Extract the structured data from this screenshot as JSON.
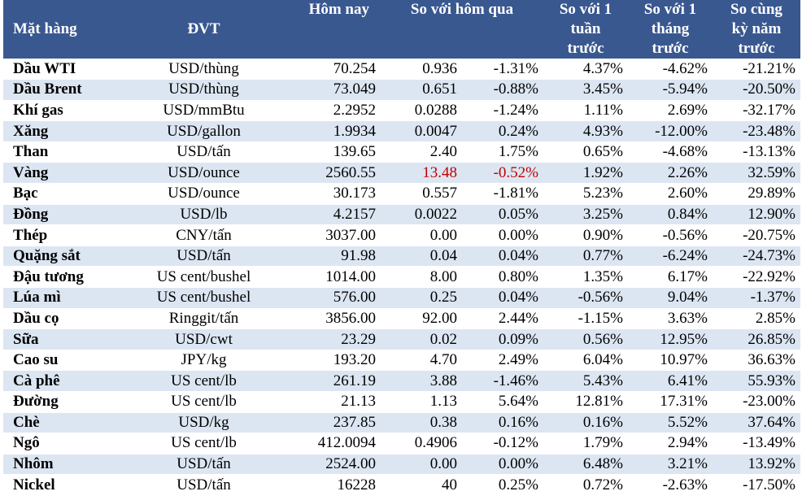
{
  "headers": {
    "name": "Mặt hàng",
    "unit": "ĐVT",
    "today": "Hôm nay",
    "prev": "So với hôm qua",
    "week": [
      "So với 1",
      "tuần",
      "trước"
    ],
    "month": [
      "So với 1",
      "tháng",
      "trước"
    ],
    "year": [
      "So cùng",
      "kỳ năm",
      "trước"
    ]
  },
  "rows": [
    {
      "name": "Dầu WTI",
      "unit": "USD/thùng",
      "today": "70.254",
      "chg": "0.936",
      "pct": "-1.31%",
      "week": "4.37%",
      "month": "-4.62%",
      "year": "-21.21%"
    },
    {
      "name": "Dầu Brent",
      "unit": "USD/thùng",
      "today": "73.049",
      "chg": "0.651",
      "pct": "-0.88%",
      "week": "3.45%",
      "month": "-5.94%",
      "year": "-20.50%"
    },
    {
      "name": "Khí gas",
      "unit": "USD/mmBtu",
      "today": "2.2952",
      "chg": "0.0288",
      "pct": "-1.24%",
      "week": "1.11%",
      "month": "2.69%",
      "year": "-32.17%"
    },
    {
      "name": "Xăng",
      "unit": "USD/gallon",
      "today": "1.9934",
      "chg": "0.0047",
      "pct": "0.24%",
      "week": "4.93%",
      "month": "-12.00%",
      "year": "-23.48%"
    },
    {
      "name": "Than",
      "unit": "USD/tấn",
      "today": "139.65",
      "chg": "2.40",
      "pct": "1.75%",
      "week": "0.65%",
      "month": "-4.68%",
      "year": "-13.13%"
    },
    {
      "name": "Vàng",
      "unit": "USD/ounce",
      "today": "2560.55",
      "chg": "13.48",
      "pct": "-0.52%",
      "week": "1.92%",
      "month": "2.26%",
      "year": "32.59%",
      "red": true
    },
    {
      "name": "Bạc",
      "unit": "USD/ounce",
      "today": "30.173",
      "chg": "0.557",
      "pct": "-1.81%",
      "week": "5.23%",
      "month": "2.60%",
      "year": "29.89%"
    },
    {
      "name": "Đồng",
      "unit": "USD/lb",
      "today": "4.2157",
      "chg": "0.0022",
      "pct": "0.05%",
      "week": "3.25%",
      "month": "0.84%",
      "year": "12.90%"
    },
    {
      "name": "Thép",
      "unit": "CNY/tấn",
      "today": "3037.00",
      "chg": "0.00",
      "pct": "0.00%",
      "week": "0.90%",
      "month": "-0.56%",
      "year": "-20.75%"
    },
    {
      "name": "Quặng sắt",
      "unit": "USD/tấn",
      "today": "91.98",
      "chg": "0.04",
      "pct": "0.04%",
      "week": "0.77%",
      "month": "-6.24%",
      "year": "-24.73%"
    },
    {
      "name": "Đậu tương",
      "unit": "US cent/bushel",
      "today": "1014.00",
      "chg": "8.00",
      "pct": "0.80%",
      "week": "1.35%",
      "month": "6.17%",
      "year": "-22.92%"
    },
    {
      "name": "Lúa mì",
      "unit": "US cent/bushel",
      "today": "576.00",
      "chg": "0.25",
      "pct": "0.04%",
      "week": "-0.56%",
      "month": "9.04%",
      "year": "-1.37%"
    },
    {
      "name": "Dầu cọ",
      "unit": "Ringgit/tấn",
      "today": "3856.00",
      "chg": "92.00",
      "pct": "2.44%",
      "week": "-1.15%",
      "month": "3.63%",
      "year": "2.85%"
    },
    {
      "name": "Sữa",
      "unit": "USD/cwt",
      "today": "23.29",
      "chg": "0.02",
      "pct": "0.09%",
      "week": "0.56%",
      "month": "12.95%",
      "year": "26.85%"
    },
    {
      "name": "Cao su",
      "unit": "JPY/kg",
      "today": "193.20",
      "chg": "4.70",
      "pct": "2.49%",
      "week": "6.04%",
      "month": "10.97%",
      "year": "36.63%"
    },
    {
      "name": "Cà phê",
      "unit": "US cent/lb",
      "today": "261.19",
      "chg": "3.88",
      "pct": "-1.46%",
      "week": "5.43%",
      "month": "6.41%",
      "year": "55.93%"
    },
    {
      "name": "Đường",
      "unit": "US cent/lb",
      "today": "21.13",
      "chg": "1.13",
      "pct": "5.64%",
      "week": "12.81%",
      "month": "17.31%",
      "year": "-23.00%"
    },
    {
      "name": "Chè",
      "unit": "USD/kg",
      "today": "237.85",
      "chg": "0.38",
      "pct": "0.16%",
      "week": "0.16%",
      "month": "5.52%",
      "year": "37.64%"
    },
    {
      "name": "Ngô",
      "unit": "US cent/lb",
      "today": "412.0094",
      "chg": "0.4906",
      "pct": "-0.12%",
      "week": "1.79%",
      "month": "2.94%",
      "year": "-13.49%"
    },
    {
      "name": "Nhôm",
      "unit": "USD/tấn",
      "today": "2524.00",
      "chg": "0.00",
      "pct": "0.00%",
      "week": "6.48%",
      "month": "3.21%",
      "year": "13.92%"
    },
    {
      "name": "Nickel",
      "unit": "USD/tấn",
      "today": "16228",
      "chg": "40",
      "pct": "0.25%",
      "week": "0.72%",
      "month": "-2.63%",
      "year": "-17.50%"
    }
  ],
  "colors": {
    "header_bg": "#3a5890",
    "stripe": "#dce6f2",
    "negative_highlight": "#c00000"
  }
}
